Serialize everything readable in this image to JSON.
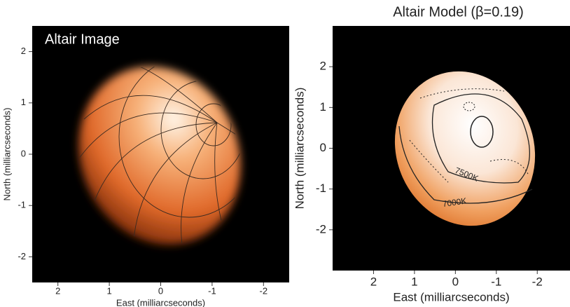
{
  "chart_data": [
    {
      "type": "image",
      "title": "Altair Image",
      "xlabel": "East (milliarcseconds)",
      "ylabel": "North (milliarcseconds)",
      "xlim": [
        2.5,
        -2.5
      ],
      "ylim": [
        -2.5,
        2.5
      ],
      "xticks": [
        2,
        1,
        0,
        -1,
        -2
      ],
      "yticks": [
        2,
        1,
        0,
        -1,
        -2
      ]
    },
    {
      "type": "image",
      "title": "Altair Model (β=0.19)",
      "xlabel": "East (milliarcseconds)",
      "ylabel": "North (milliarcseconds)",
      "xlim": [
        3,
        -2.8
      ],
      "ylim": [
        -3,
        3
      ],
      "xticks": [
        2,
        1,
        0,
        -1,
        -2
      ],
      "yticks": [
        2,
        1,
        0,
        -1,
        -2
      ],
      "annotations": [
        {
          "text": "7500K"
        },
        {
          "text": "7000K"
        }
      ]
    }
  ]
}
